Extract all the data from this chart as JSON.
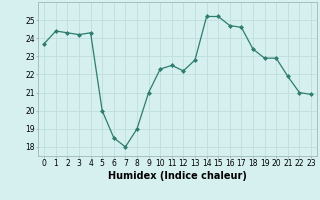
{
  "x": [
    0,
    1,
    2,
    3,
    4,
    5,
    6,
    7,
    8,
    9,
    10,
    11,
    12,
    13,
    14,
    15,
    16,
    17,
    18,
    19,
    20,
    21,
    22,
    23
  ],
  "y": [
    23.7,
    24.4,
    24.3,
    24.2,
    24.3,
    20.0,
    18.5,
    18.0,
    19.0,
    21.0,
    22.3,
    22.5,
    22.2,
    22.8,
    25.2,
    25.2,
    24.7,
    24.6,
    23.4,
    22.9,
    22.9,
    21.9,
    21.0,
    20.9
  ],
  "line_color": "#2e7d6e",
  "marker": "D",
  "marker_size": 2.0,
  "bg_color": "#d6efef",
  "grid_color": "#c0dede",
  "xlabel": "Humidex (Indice chaleur)",
  "ylim": [
    17.5,
    26.0
  ],
  "xlim": [
    -0.5,
    23.5
  ],
  "yticks": [
    18,
    19,
    20,
    21,
    22,
    23,
    24,
    25
  ],
  "xticks": [
    0,
    1,
    2,
    3,
    4,
    5,
    6,
    7,
    8,
    9,
    10,
    11,
    12,
    13,
    14,
    15,
    16,
    17,
    18,
    19,
    20,
    21,
    22,
    23
  ],
  "tick_label_fontsize": 5.5,
  "xlabel_fontsize": 7.0,
  "axis_color": "#a0b8b8",
  "line_width": 0.9
}
